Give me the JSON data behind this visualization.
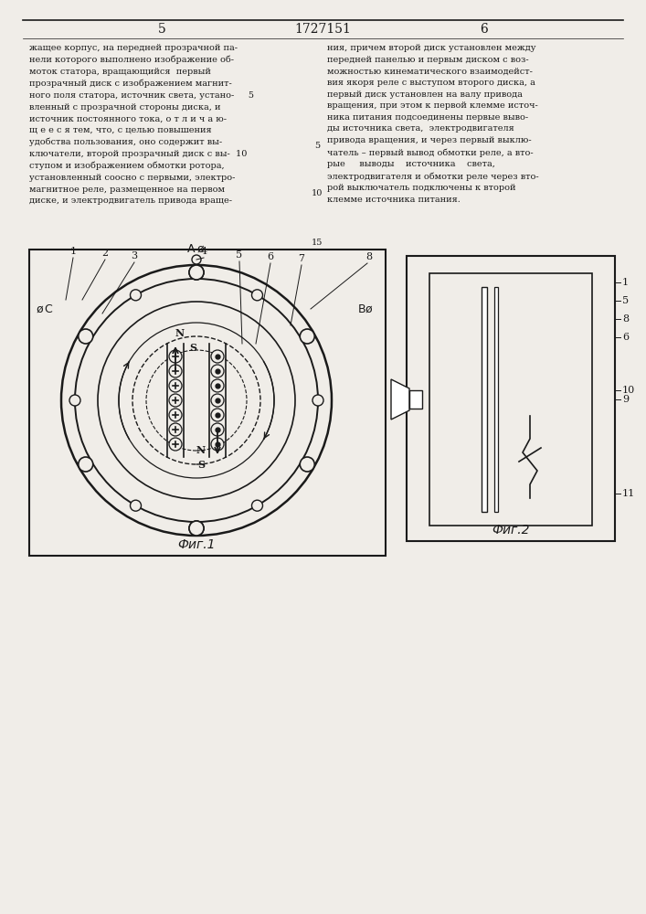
{
  "title_number": "1727151",
  "page_left": "5",
  "page_right": "6",
  "bg_color": "#f0ede8",
  "line_color": "#1a1a1a",
  "fig1_caption": "Фиг.1",
  "fig2_caption": "Фиг.2"
}
